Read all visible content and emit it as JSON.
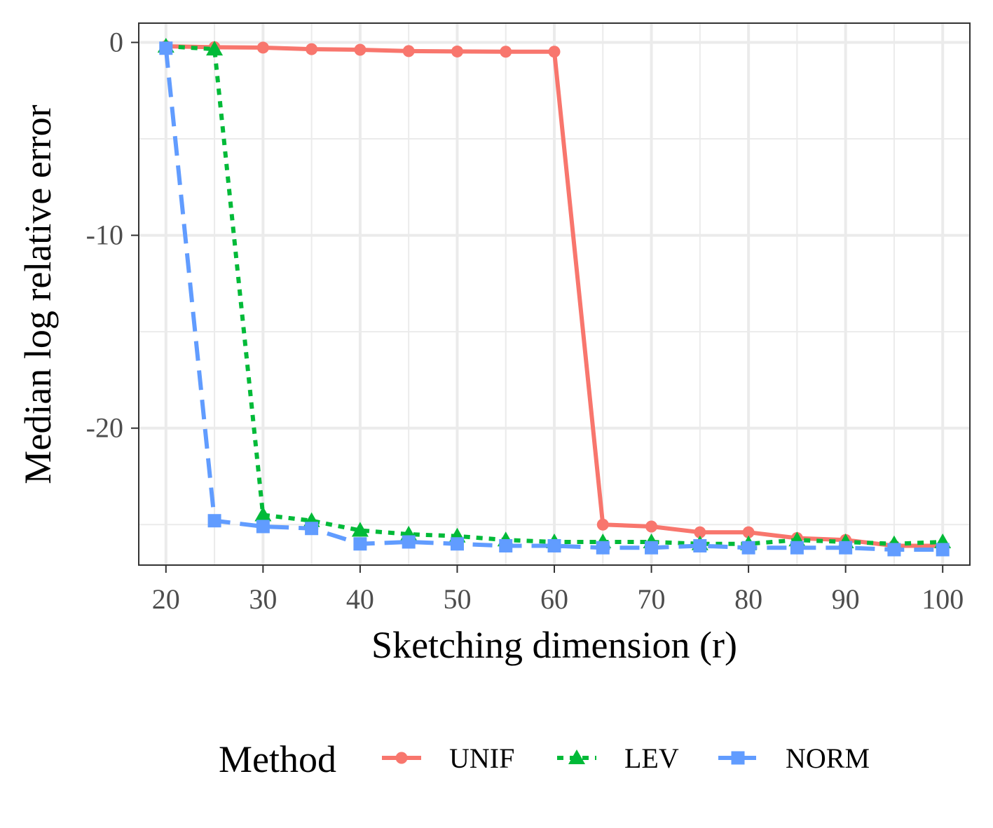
{
  "chart_data": {
    "type": "line",
    "title": "",
    "xlabel": "Sketching dimension (r)",
    "ylabel": "Median log relative error",
    "xlim": [
      17.2,
      102.8
    ],
    "ylim": [
      -27.1,
      1.0
    ],
    "x_ticks": [
      20,
      30,
      40,
      50,
      60,
      70,
      80,
      90,
      100
    ],
    "x_tick_labels": [
      "20",
      "30",
      "40",
      "50",
      "60",
      "70",
      "80",
      "90",
      "100"
    ],
    "y_ticks": [
      0,
      -10,
      -20
    ],
    "y_tick_labels": [
      "0",
      "-10",
      "-20"
    ],
    "y_minor_ticks": [
      -5,
      -15,
      -25
    ],
    "x_minor_ticks": [
      25,
      35,
      45,
      55,
      65,
      75,
      85,
      95
    ],
    "grid": true,
    "x": [
      20,
      25,
      30,
      35,
      40,
      45,
      50,
      55,
      60,
      65,
      70,
      75,
      80,
      85,
      90,
      95,
      100
    ],
    "legend": {
      "title": "Method",
      "position": "bottom"
    },
    "series": [
      {
        "name": "UNIF",
        "color": "#F8766D",
        "marker": "circle",
        "dash": "solid",
        "values": [
          -0.2,
          -0.25,
          -0.27,
          -0.35,
          -0.38,
          -0.45,
          -0.47,
          -0.48,
          -0.48,
          -25.0,
          -25.1,
          -25.4,
          -25.4,
          -25.7,
          -25.8,
          -26.1,
          -26.1
        ]
      },
      {
        "name": "LEV",
        "color": "#00BA38",
        "marker": "triangle",
        "dash": "dotted",
        "values": [
          -0.2,
          -0.35,
          -24.5,
          -24.8,
          -25.3,
          -25.5,
          -25.6,
          -25.8,
          -25.9,
          -25.9,
          -25.9,
          -26.0,
          -26.0,
          -25.8,
          -25.9,
          -26.0,
          -25.9
        ]
      },
      {
        "name": "NORM",
        "color": "#619CFF",
        "marker": "square",
        "dash": "dashed",
        "values": [
          -0.3,
          -24.8,
          -25.1,
          -25.2,
          -26.0,
          -25.9,
          -26.0,
          -26.1,
          -26.1,
          -26.2,
          -26.2,
          -26.1,
          -26.2,
          -26.2,
          -26.2,
          -26.3,
          -26.3
        ]
      }
    ]
  }
}
